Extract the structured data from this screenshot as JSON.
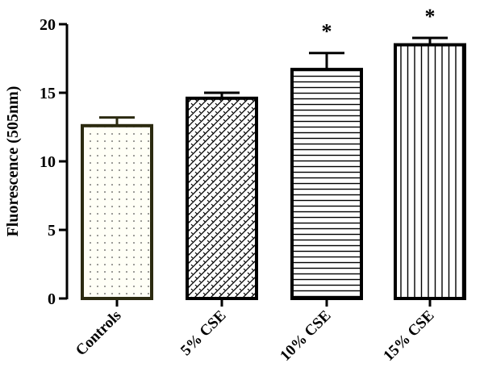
{
  "chart_data": {
    "type": "bar",
    "title": "",
    "xlabel": "",
    "ylabel": "Fluorescence (505nm)",
    "ylim": [
      0,
      20
    ],
    "yticks": [
      0,
      5,
      10,
      15,
      20
    ],
    "grid": false,
    "categories": [
      "Controls",
      "5% CSE",
      "10% CSE",
      "15% CSE"
    ],
    "values": [
      12.6,
      14.6,
      16.7,
      18.5
    ],
    "error_upper": [
      0.6,
      0.4,
      1.2,
      0.5
    ],
    "significance": [
      "",
      "",
      "*",
      "*"
    ],
    "patterns": [
      "dots",
      "herringbone",
      "horizontal-lines",
      "vertical-lines"
    ],
    "colors": {
      "controls_edge": "#2b2a10",
      "edge": "#000000"
    }
  }
}
